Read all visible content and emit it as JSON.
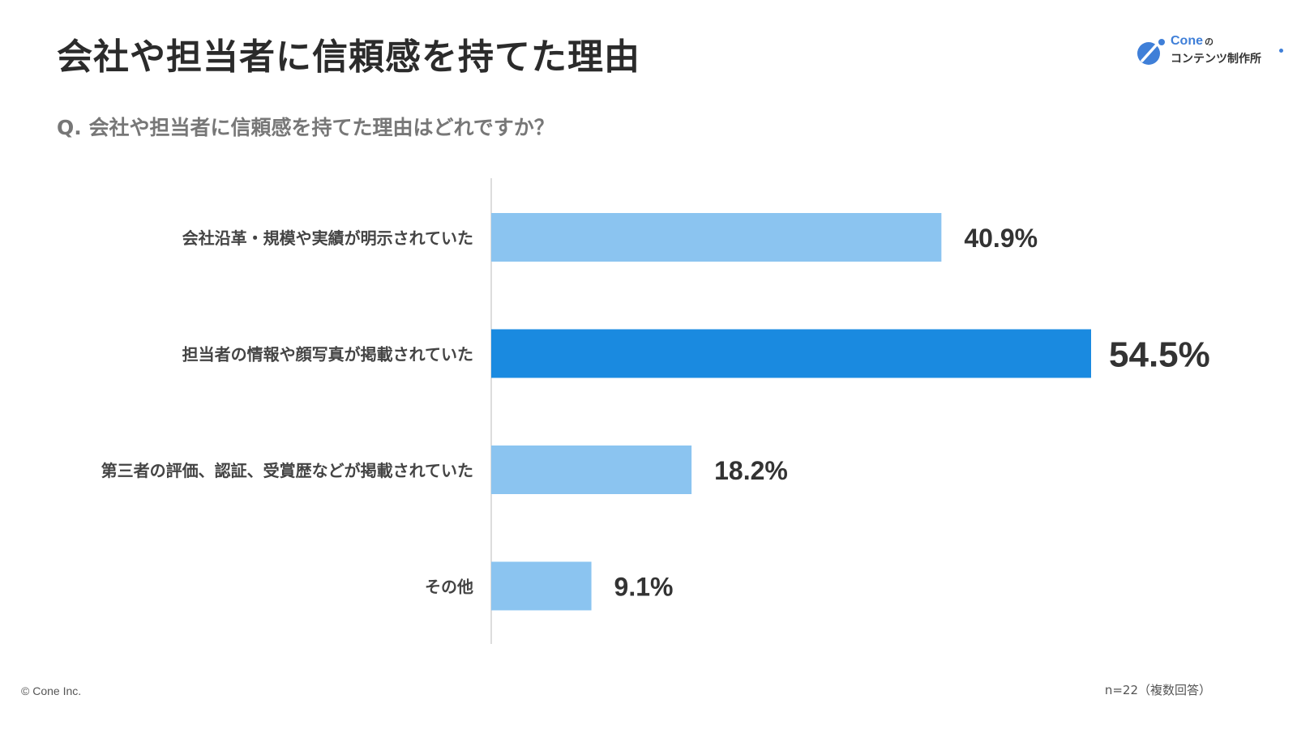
{
  "title": "会社や担当者に信頼感を持てた理由",
  "question": "Q. 会社や担当者に信頼感を持てた理由はどれですか？",
  "logo": {
    "name": "Cone",
    "particle": "の",
    "subtitle": "コンテンツ制作所"
  },
  "colors": {
    "bar": "#8bc4f0",
    "bar_highlight": "#1a8ae0",
    "axis": "#dddddd",
    "label": "#444444",
    "value": "#333333"
  },
  "chart_data": {
    "type": "bar",
    "orientation": "horizontal",
    "categories": [
      "会社沿革・規模や実績が明示されていた",
      "担当者の情報や顔写真が掲載されていた",
      "第三者の評価、認証、受賞歴などが掲載されていた",
      "その他"
    ],
    "values": [
      40.9,
      54.5,
      18.2,
      9.1
    ],
    "value_labels": [
      "40.9%",
      "54.5%",
      "18.2%",
      "9.1%"
    ],
    "highlight_index": 1,
    "unit": "%",
    "xlim": [
      0,
      54.5
    ],
    "grid": false,
    "legend": "none"
  },
  "footer": {
    "copyright": "© Cone Inc.",
    "note": "n=22（複数回答）"
  }
}
